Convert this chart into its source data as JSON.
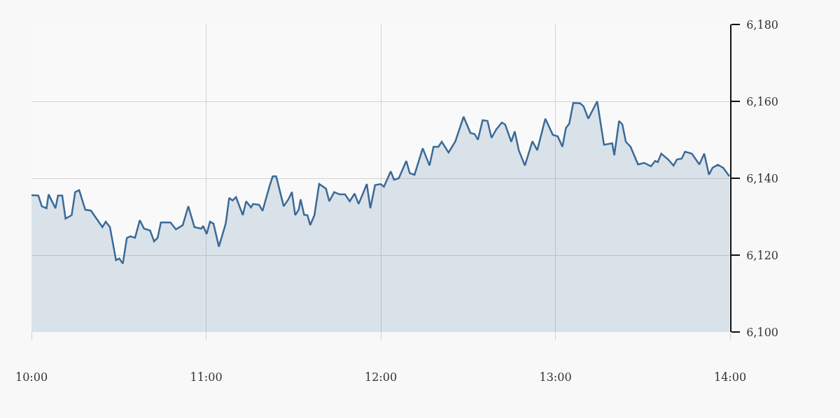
{
  "chart_data": {
    "type": "area",
    "x": [
      10.0,
      10.039,
      10.059,
      10.086,
      10.098,
      10.137,
      10.152,
      10.176,
      10.195,
      10.23,
      10.25,
      10.273,
      10.308,
      10.34,
      10.406,
      10.425,
      10.449,
      10.484,
      10.503,
      10.523,
      10.546,
      10.566,
      10.593,
      10.62,
      10.644,
      10.679,
      10.702,
      10.722,
      10.741,
      10.796,
      10.827,
      10.866,
      10.898,
      10.933,
      10.972,
      10.983,
      11.003,
      11.022,
      11.042,
      11.073,
      11.112,
      11.132,
      11.151,
      11.171,
      11.21,
      11.229,
      11.257,
      11.268,
      11.303,
      11.323,
      11.362,
      11.381,
      11.401,
      11.444,
      11.471,
      11.491,
      11.51,
      11.53,
      11.541,
      11.561,
      11.58,
      11.596,
      11.62,
      11.647,
      11.686,
      11.705,
      11.733,
      11.764,
      11.795,
      11.822,
      11.85,
      11.873,
      11.92,
      11.94,
      11.967,
      11.998,
      12.018,
      12.057,
      12.076,
      12.103,
      12.146,
      12.166,
      12.193,
      12.24,
      12.279,
      12.302,
      12.33,
      12.349,
      12.388,
      12.427,
      12.474,
      12.513,
      12.537,
      12.556,
      12.583,
      12.611,
      12.634,
      12.661,
      12.693,
      12.712,
      12.747,
      12.767,
      12.79,
      12.825,
      12.868,
      12.896,
      12.942,
      12.985,
      13.013,
      13.04,
      13.06,
      13.079,
      13.102,
      13.141,
      13.161,
      13.188,
      13.239,
      13.278,
      13.325,
      13.337,
      13.364,
      13.383,
      13.403,
      13.43,
      13.473,
      13.508,
      13.547,
      13.571,
      13.586,
      13.606,
      13.645,
      13.676,
      13.696,
      13.723,
      13.742,
      13.781,
      13.824,
      13.852,
      13.879,
      13.899,
      13.93,
      13.961,
      13.996
    ],
    "series": [
      {
        "color": "#3a6a98",
        "values": [
          6135.6,
          6135.5,
          6132.7,
          6132.2,
          6135.8,
          6132.2,
          6135.5,
          6135.5,
          6129.5,
          6130.4,
          6136.4,
          6136.9,
          6131.8,
          6131.6,
          6127.3,
          6128.7,
          6127.3,
          6118.7,
          6119.1,
          6117.8,
          6124.5,
          6124.9,
          6124.5,
          6129.1,
          6126.9,
          6126.4,
          6123.6,
          6124.5,
          6128.5,
          6128.5,
          6126.7,
          6127.8,
          6132.7,
          6127.3,
          6126.9,
          6127.6,
          6125.5,
          6128.7,
          6128.2,
          6122.2,
          6128.2,
          6134.9,
          6134.2,
          6135.1,
          6130.4,
          6134.0,
          6132.4,
          6133.3,
          6133.1,
          6131.5,
          6137.8,
          6140.5,
          6140.5,
          6132.7,
          6134.5,
          6136.4,
          6130.4,
          6131.8,
          6134.5,
          6130.5,
          6130.4,
          6127.8,
          6130.4,
          6138.5,
          6137.3,
          6134.0,
          6136.4,
          6135.8,
          6135.8,
          6134.0,
          6136.0,
          6133.3,
          6138.5,
          6132.2,
          6138.2,
          6138.5,
          6137.8,
          6141.8,
          6139.6,
          6140.0,
          6144.5,
          6141.3,
          6140.9,
          6147.8,
          6143.3,
          6148.2,
          6148.2,
          6149.5,
          6146.7,
          6149.6,
          6156.0,
          6151.8,
          6151.5,
          6150.0,
          6155.1,
          6154.9,
          6150.5,
          6152.7,
          6154.5,
          6154.0,
          6149.5,
          6152.2,
          6147.3,
          6143.3,
          6149.6,
          6147.3,
          6155.5,
          6151.3,
          6150.9,
          6148.2,
          6153.1,
          6154.2,
          6159.6,
          6159.5,
          6158.7,
          6155.5,
          6160.0,
          6148.7,
          6149.1,
          6146.0,
          6154.9,
          6154.0,
          6149.5,
          6148.2,
          6143.6,
          6144.0,
          6143.1,
          6144.5,
          6144.2,
          6146.4,
          6144.9,
          6143.3,
          6144.9,
          6145.1,
          6146.9,
          6146.4,
          6143.6,
          6146.4,
          6140.9,
          6142.7,
          6143.5,
          6142.7,
          6140.5
        ]
      }
    ],
    "xlim": [
      10,
      14
    ],
    "xticks": [
      {
        "value": 10,
        "label": "10:00"
      },
      {
        "value": 11,
        "label": "11:00"
      },
      {
        "value": 12,
        "label": "12:00"
      },
      {
        "value": 13,
        "label": "13:00"
      },
      {
        "value": 14,
        "label": "14:00"
      }
    ],
    "ylim": [
      6100,
      6180
    ],
    "yticks": [
      {
        "value": 6100,
        "label": "6,100"
      },
      {
        "value": 6120,
        "label": "6,120"
      },
      {
        "value": 6140,
        "label": "6,140"
      },
      {
        "value": 6160,
        "label": "6,160"
      },
      {
        "value": 6180,
        "label": "6,180"
      }
    ],
    "grid": true,
    "marker": "none",
    "line_style": "solid"
  }
}
